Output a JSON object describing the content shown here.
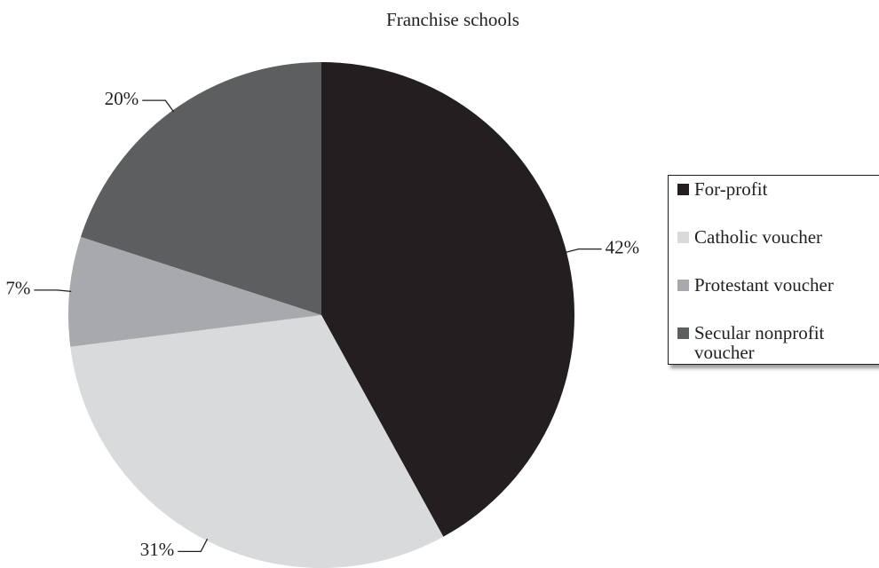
{
  "chart_data": {
    "type": "pie",
    "title": "Franchise schools",
    "categories": [
      "For-profit",
      "Catholic voucher",
      "Protestant voucher",
      "Secular nonprofit voucher"
    ],
    "values": [
      42,
      31,
      7,
      20
    ],
    "value_labels": [
      "42%",
      "31%",
      "7%",
      "20%"
    ],
    "colors": [
      "#231f20",
      "#d9dadc",
      "#a7a9ac",
      "#5d5e60"
    ],
    "legend": "right"
  }
}
